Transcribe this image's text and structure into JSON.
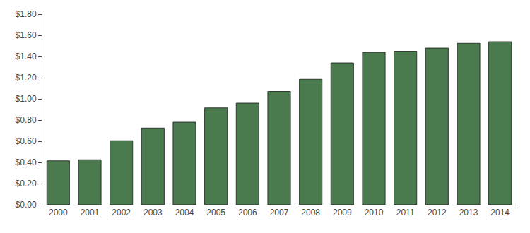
{
  "chart_data": {
    "type": "bar",
    "categories": [
      "2000",
      "2001",
      "2002",
      "2003",
      "2004",
      "2005",
      "2006",
      "2007",
      "2008",
      "2009",
      "2010",
      "2011",
      "2012",
      "2013",
      "2014"
    ],
    "values": [
      0.415,
      0.425,
      0.605,
      0.725,
      0.78,
      0.915,
      0.96,
      1.07,
      1.185,
      1.34,
      1.44,
      1.45,
      1.48,
      1.525,
      1.54
    ],
    "color": "#4a7a4e",
    "ylim": [
      0.0,
      1.8
    ],
    "yticks": [
      {
        "value": 0.0,
        "label": "$0.00"
      },
      {
        "value": 0.2,
        "label": "$0.20"
      },
      {
        "value": 0.4,
        "label": "$0.40"
      },
      {
        "value": 0.6,
        "label": "$0.60"
      },
      {
        "value": 0.8,
        "label": "$0.80"
      },
      {
        "value": 1.0,
        "label": "$1.00"
      },
      {
        "value": 1.2,
        "label": "$1.20"
      },
      {
        "value": 1.4,
        "label": "$1.40"
      },
      {
        "value": 1.6,
        "label": "$1.60"
      },
      {
        "value": 1.8,
        "label": "$1.80"
      }
    ],
    "grid": false
  }
}
